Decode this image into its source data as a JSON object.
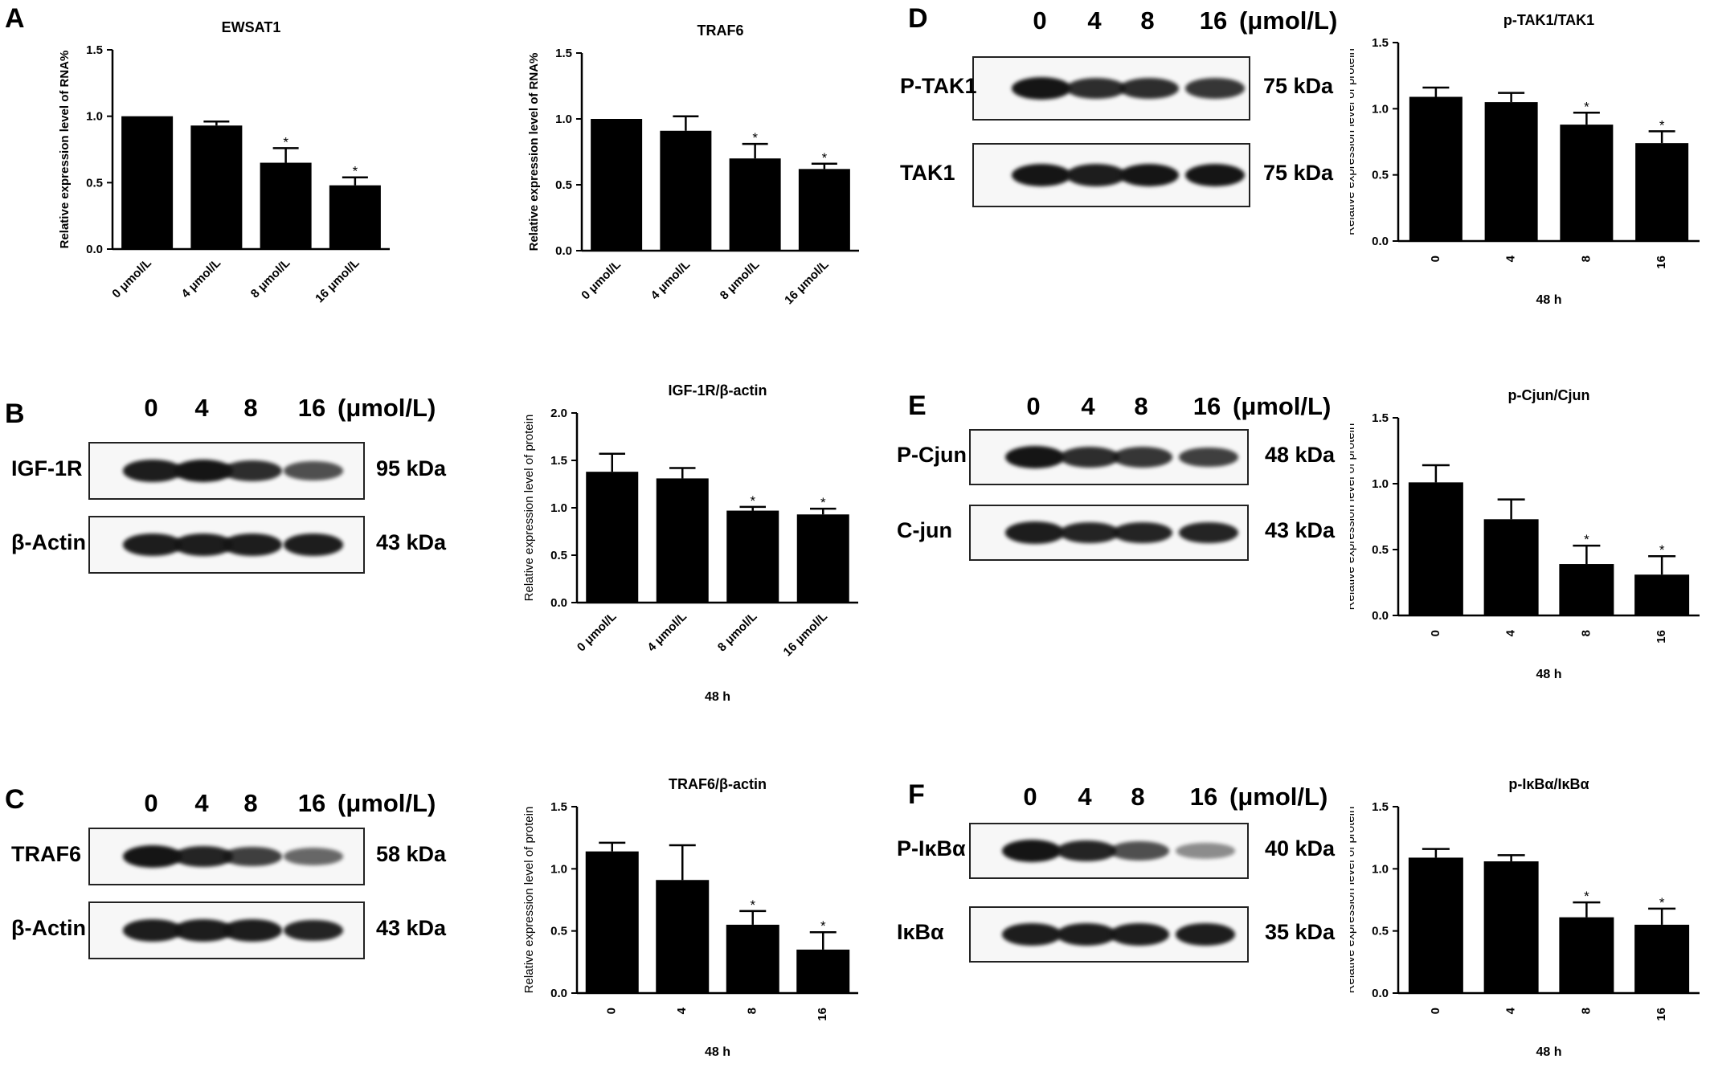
{
  "panel_labels": [
    "A",
    "B",
    "C",
    "D",
    "E",
    "F"
  ],
  "chart_data": [
    {
      "id": "A1",
      "type": "bar",
      "title": "EWSAT1",
      "ylabel": "Relative expression level of RNA%",
      "xlabel": "",
      "categories": [
        "0 μmol/L",
        "4 μmol/L",
        "8 μmol/L",
        "16 μmol/L"
      ],
      "values": [
        1.0,
        0.93,
        0.65,
        0.48
      ],
      "errors": [
        0.0,
        0.03,
        0.11,
        0.06
      ],
      "significant": [
        false,
        false,
        true,
        true
      ],
      "ylim": [
        0,
        1.5
      ],
      "ticks": [
        "0.0",
        "0.5",
        "1.0",
        "1.5"
      ]
    },
    {
      "id": "A2",
      "type": "bar",
      "title": "TRAF6",
      "ylabel": "Relative expression level of RNA%",
      "xlabel": "",
      "categories": [
        "0 μmol/L",
        "4 μmol/L",
        "8 μmol/L",
        "16 μmol/L"
      ],
      "values": [
        1.0,
        0.91,
        0.7,
        0.62
      ],
      "errors": [
        0.0,
        0.11,
        0.11,
        0.04
      ],
      "significant": [
        false,
        false,
        true,
        true
      ],
      "ylim": [
        0,
        1.5
      ],
      "ticks": [
        "0.0",
        "0.5",
        "1.0",
        "1.5"
      ]
    },
    {
      "id": "B",
      "type": "bar",
      "title": "IGF-1R/β-actin",
      "ylabel": "Relative expression level of protein",
      "xlabel": "48 h",
      "categories": [
        "0 μmol/L",
        "4 μmol/L",
        "8 μmol/L",
        "16 μmol/L"
      ],
      "values": [
        1.38,
        1.31,
        0.97,
        0.93
      ],
      "errors": [
        0.19,
        0.11,
        0.04,
        0.06
      ],
      "significant": [
        false,
        false,
        true,
        true
      ],
      "ylim": [
        0,
        2.0
      ],
      "ticks": [
        "0.0",
        "0.5",
        "1.0",
        "1.5",
        "2.0"
      ]
    },
    {
      "id": "C",
      "type": "bar",
      "title": "TRAF6/β-actin",
      "ylabel": "Relative expression level of protein",
      "xlabel": "48 h",
      "categories": [
        "0",
        "4",
        "8",
        "16"
      ],
      "values": [
        1.14,
        0.91,
        0.55,
        0.35
      ],
      "errors": [
        0.07,
        0.28,
        0.11,
        0.14
      ],
      "significant": [
        false,
        false,
        true,
        true
      ],
      "ylim": [
        0,
        1.5
      ],
      "ticks": [
        "0.0",
        "0.5",
        "1.0",
        "1.5"
      ]
    },
    {
      "id": "D",
      "type": "bar",
      "title": "p-TAK1/TAK1",
      "ylabel": "Relative expression level of protein",
      "xlabel": "48 h",
      "categories": [
        "0",
        "4",
        "8",
        "16"
      ],
      "values": [
        1.09,
        1.05,
        0.88,
        0.74
      ],
      "errors": [
        0.07,
        0.07,
        0.09,
        0.09
      ],
      "significant": [
        false,
        false,
        true,
        true
      ],
      "ylim": [
        0,
        1.5
      ],
      "ticks": [
        "0.0",
        "0.5",
        "1.0",
        "1.5"
      ]
    },
    {
      "id": "E",
      "type": "bar",
      "title": "p-Cjun/Cjun",
      "ylabel": "Relative expression level of protein",
      "xlabel": "48 h",
      "categories": [
        "0",
        "4",
        "8",
        "16"
      ],
      "values": [
        1.01,
        0.73,
        0.39,
        0.31
      ],
      "errors": [
        0.13,
        0.15,
        0.14,
        0.14
      ],
      "significant": [
        false,
        false,
        true,
        true
      ],
      "ylim": [
        0,
        1.5
      ],
      "ticks": [
        "0.0",
        "0.5",
        "1.0",
        "1.5"
      ]
    },
    {
      "id": "F",
      "type": "bar",
      "title": "p-IκBα/IκBα",
      "ylabel": "Relative expression level of protein",
      "xlabel": "48 h",
      "categories": [
        "0",
        "4",
        "8",
        "16"
      ],
      "values": [
        1.09,
        1.06,
        0.61,
        0.55
      ],
      "errors": [
        0.07,
        0.05,
        0.12,
        0.13
      ],
      "significant": [
        false,
        false,
        true,
        true
      ],
      "ylim": [
        0,
        1.5
      ],
      "ticks": [
        "0.0",
        "0.5",
        "1.0",
        "1.5"
      ]
    }
  ],
  "significance_marker": "*",
  "blots": {
    "lanes": [
      "0",
      "4",
      "8",
      "16"
    ],
    "unit": "(μmol/L)",
    "B": {
      "rows": [
        {
          "label": "IGF-1R",
          "kda": "95 kDa",
          "intensity": [
            0.95,
            1.0,
            0.85,
            0.65
          ]
        },
        {
          "label": "β-Actin",
          "kda": "43 kDa",
          "intensity": [
            0.95,
            0.95,
            0.95,
            0.95
          ]
        }
      ]
    },
    "C": {
      "rows": [
        {
          "label": "TRAF6",
          "kda": "58 kDa",
          "intensity": [
            1.0,
            0.9,
            0.75,
            0.5
          ]
        },
        {
          "label": "β-Actin",
          "kda": "43 kDa",
          "intensity": [
            0.95,
            0.95,
            0.95,
            0.9
          ]
        }
      ]
    },
    "D": {
      "rows": [
        {
          "label": "P-TAK1",
          "kda": "75 kDa",
          "intensity": [
            1.0,
            0.85,
            0.85,
            0.8
          ]
        },
        {
          "label": "TAK1",
          "kda": "75 kDa",
          "intensity": [
            1.0,
            0.95,
            1.0,
            1.0
          ]
        }
      ]
    },
    "E": {
      "rows": [
        {
          "label": "P-Cjun",
          "kda": "48 kDa",
          "intensity": [
            1.0,
            0.85,
            0.8,
            0.75
          ]
        },
        {
          "label": "C-jun",
          "kda": "43 kDa",
          "intensity": [
            0.95,
            0.9,
            0.9,
            0.9
          ]
        }
      ]
    },
    "F": {
      "rows": [
        {
          "label": "P-IκBα",
          "kda": "40 kDa",
          "intensity": [
            1.0,
            0.9,
            0.65,
            0.3
          ]
        },
        {
          "label": "IκBα",
          "kda": "35 kDa",
          "intensity": [
            0.95,
            0.95,
            0.95,
            0.95
          ]
        }
      ]
    }
  }
}
